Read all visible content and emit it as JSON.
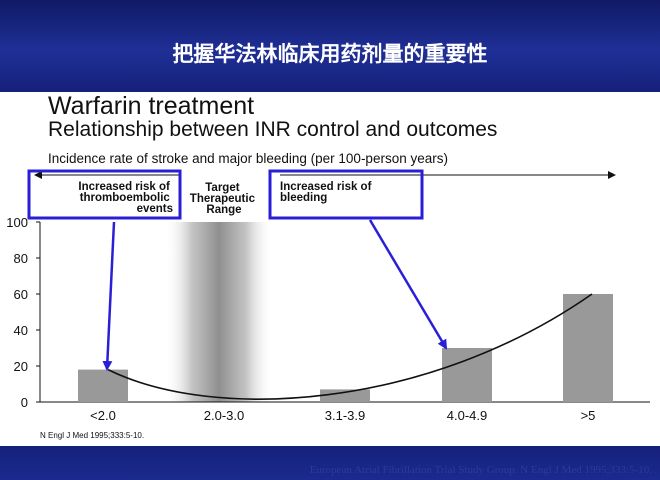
{
  "slide": {
    "title": "把握华法林临床用药剂量的重要性",
    "footer": "European Atrial Fibrillation Trial Study Group. N Engl J Med 1995;333:5-10."
  },
  "colors": {
    "header_blue": "#1c2a8e",
    "bar_gray": "#999999",
    "box_blue": "#2a1fd6",
    "arrow_blue": "#2a1fd6"
  },
  "chart_data": {
    "type": "bar",
    "title": "Warfarin treatment",
    "subtitle": "Relationship between INR control and outcomes",
    "caption": "Incidence rate of stroke and major bleeding (per 100-person years)",
    "citation": "N Engl J Med 1995;333:5-10.",
    "categories": [
      "<2.0",
      "2.0-3.0",
      "3.1-3.9",
      "4.0-4.9",
      ">5"
    ],
    "values": [
      18,
      0,
      7,
      30,
      60
    ],
    "ylim": [
      0,
      100
    ],
    "yticks": [
      0,
      20,
      40,
      60,
      80,
      100
    ],
    "grid": false,
    "trend_curve": true,
    "annotations": {
      "left_box": [
        "Increased risk of",
        "thromboembolic",
        "events"
      ],
      "middle": [
        "Target",
        "Therapeutic",
        "Range"
      ],
      "right_box": [
        "Increased risk of",
        "bleeding"
      ]
    }
  }
}
